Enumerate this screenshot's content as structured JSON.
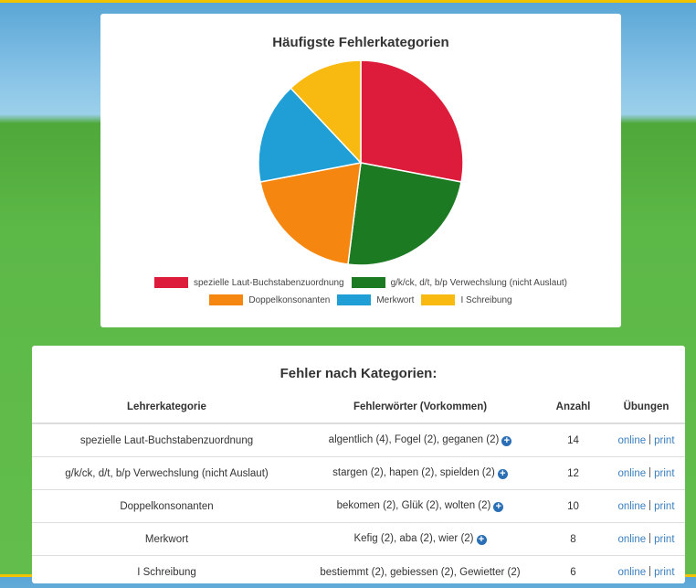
{
  "chart_data": {
    "type": "pie",
    "title": "Häufigste Fehlerkategorien",
    "categories": [
      "spezielle Laut-Buchstabenzuordnung",
      "g/k/ck, d/t, b/p Verwechslung (nicht Auslaut)",
      "Doppelkonsonanten",
      "Merkwort",
      "I Schreibung"
    ],
    "values": [
      14,
      12,
      10,
      8,
      6
    ],
    "colors": [
      "#dc1c3a",
      "#1c7a22",
      "#f5860f",
      "#1f9fd6",
      "#f8ba10"
    ],
    "legend": "bottom"
  },
  "table": {
    "title": "Fehler nach Kategorien:",
    "headers": [
      "Lehrerkategorie",
      "Fehlerwörter (Vorkommen)",
      "Anzahl",
      "Übungen"
    ],
    "rows": [
      {
        "category": "spezielle Laut-Buchstabenzuordnung",
        "words": "algentlich (4), Fogel (2), geganen (2)",
        "more": true,
        "count": "14",
        "links": [
          "online",
          "print"
        ]
      },
      {
        "category": "g/k/ck, d/t, b/p Verwechslung (nicht Auslaut)",
        "words": "stargen (2), hapen (2), spielden (2)",
        "more": true,
        "count": "12",
        "links": [
          "online",
          "print"
        ]
      },
      {
        "category": "Doppelkonsonanten",
        "words": "bekomen (2), Glük (2), wolten (2)",
        "more": true,
        "count": "10",
        "links": [
          "online",
          "print"
        ]
      },
      {
        "category": "Merkwort",
        "words": "Kefig (2), aba (2), wier (2)",
        "more": true,
        "count": "8",
        "links": [
          "online",
          "print"
        ]
      },
      {
        "category": "I Schreibung",
        "words": "bestiemmt (2), gebiessen (2), Gewietter (2)",
        "more": false,
        "count": "6",
        "links": [
          "online",
          "print"
        ]
      }
    ]
  }
}
